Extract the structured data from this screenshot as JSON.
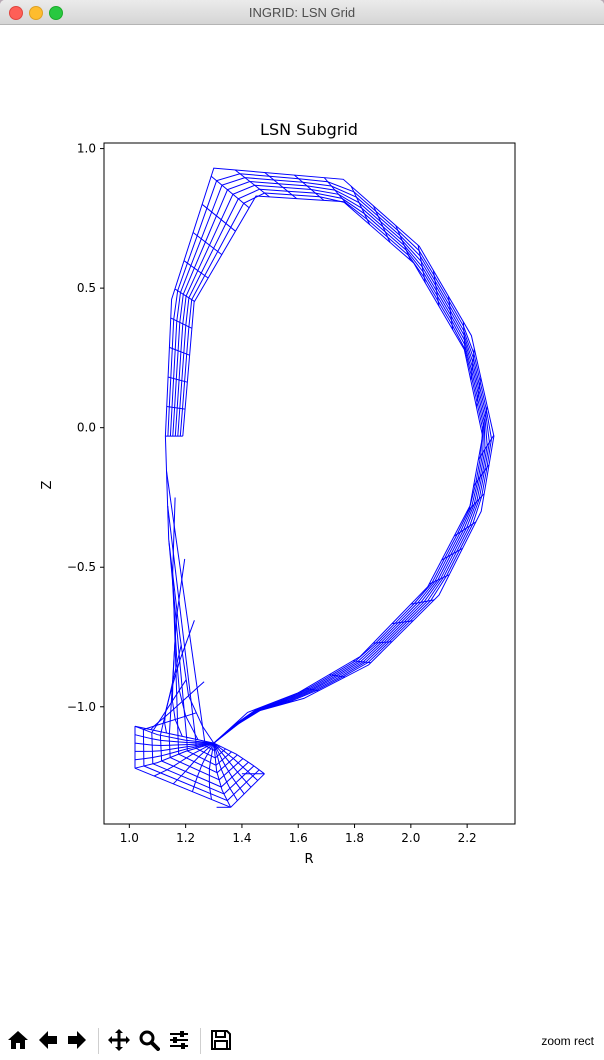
{
  "window": {
    "title": "INGRID: LSN Grid"
  },
  "toolbar": {
    "buttons": [
      {
        "name": "home-button",
        "icon": "home-icon"
      },
      {
        "name": "back-button",
        "icon": "arrow-left-icon"
      },
      {
        "name": "forward-button",
        "icon": "arrow-right-icon"
      },
      {
        "name": "pan-button",
        "icon": "move-icon"
      },
      {
        "name": "zoom-button",
        "icon": "magnifier-icon"
      },
      {
        "name": "configure-subplots-button",
        "icon": "sliders-icon"
      },
      {
        "name": "save-button",
        "icon": "floppy-disk-icon"
      }
    ],
    "mode": "zoom rect"
  },
  "chart_data": {
    "type": "line",
    "title": "LSN Subgrid",
    "xlabel": "R",
    "ylabel": "Z",
    "xlim": [
      0.91,
      2.37
    ],
    "ylim": [
      -1.42,
      1.02
    ],
    "xticks": [
      "1.0",
      "1.2",
      "1.4",
      "1.6",
      "1.8",
      "2.0",
      "2.2"
    ],
    "yticks": [
      "1.0",
      "0.5",
      "0.0",
      "−0.5",
      "−1.0"
    ],
    "line_color": "#0000ff",
    "grid": false,
    "series": [
      {
        "values": [
          [
            1.128,
            -0.03
          ],
          [
            1.15,
            0.46
          ],
          [
            1.3,
            0.93
          ],
          [
            1.76,
            0.89
          ],
          [
            2.03,
            0.65
          ],
          [
            2.215,
            0.33
          ],
          [
            2.295,
            -0.03
          ],
          [
            2.25,
            -0.3
          ],
          [
            2.1,
            -0.6
          ],
          [
            1.85,
            -0.85
          ],
          [
            1.62,
            -0.97
          ],
          [
            1.44,
            -1.02
          ],
          [
            1.3,
            -1.13
          ]
        ]
      },
      {
        "values": [
          [
            1.19,
            -0.03
          ],
          [
            1.23,
            0.45
          ],
          [
            1.45,
            0.83
          ],
          [
            1.76,
            0.81
          ],
          [
            2.01,
            0.59
          ],
          [
            2.19,
            0.28
          ],
          [
            2.255,
            -0.03
          ],
          [
            2.21,
            -0.28
          ],
          [
            2.06,
            -0.57
          ],
          [
            1.82,
            -0.82
          ],
          [
            1.6,
            -0.95
          ],
          [
            1.42,
            -1.02
          ],
          [
            1.3,
            -1.13
          ]
        ]
      },
      {
        "values": [
          [
            1.128,
            -0.03
          ],
          [
            1.14,
            -0.4
          ],
          [
            1.18,
            -0.75
          ],
          [
            1.21,
            -0.96
          ],
          [
            1.26,
            -1.07
          ],
          [
            1.3,
            -1.13
          ]
        ]
      },
      {
        "values": [
          [
            1.3,
            -1.13
          ],
          [
            1.2,
            -1.12
          ],
          [
            1.1,
            -1.1
          ],
          [
            1.02,
            -1.07
          ]
        ]
      },
      {
        "values": [
          [
            1.3,
            -1.13
          ],
          [
            1.2,
            -1.16
          ],
          [
            1.1,
            -1.2
          ],
          [
            1.02,
            -1.22
          ]
        ]
      },
      {
        "values": [
          [
            1.3,
            -1.13
          ],
          [
            1.31,
            -1.23
          ],
          [
            1.33,
            -1.3
          ],
          [
            1.36,
            -1.36
          ]
        ]
      },
      {
        "values": [
          [
            1.3,
            -1.13
          ],
          [
            1.38,
            -1.17
          ],
          [
            1.44,
            -1.21
          ],
          [
            1.48,
            -1.24
          ]
        ]
      },
      {
        "values": [
          [
            1.02,
            -1.07
          ],
          [
            1.02,
            -1.22
          ]
        ]
      },
      {
        "values": [
          [
            1.31,
            -1.36
          ],
          [
            1.36,
            -1.36
          ]
        ]
      },
      {
        "values": [
          [
            1.4,
            -1.24
          ],
          [
            1.48,
            -1.24
          ]
        ]
      }
    ]
  }
}
